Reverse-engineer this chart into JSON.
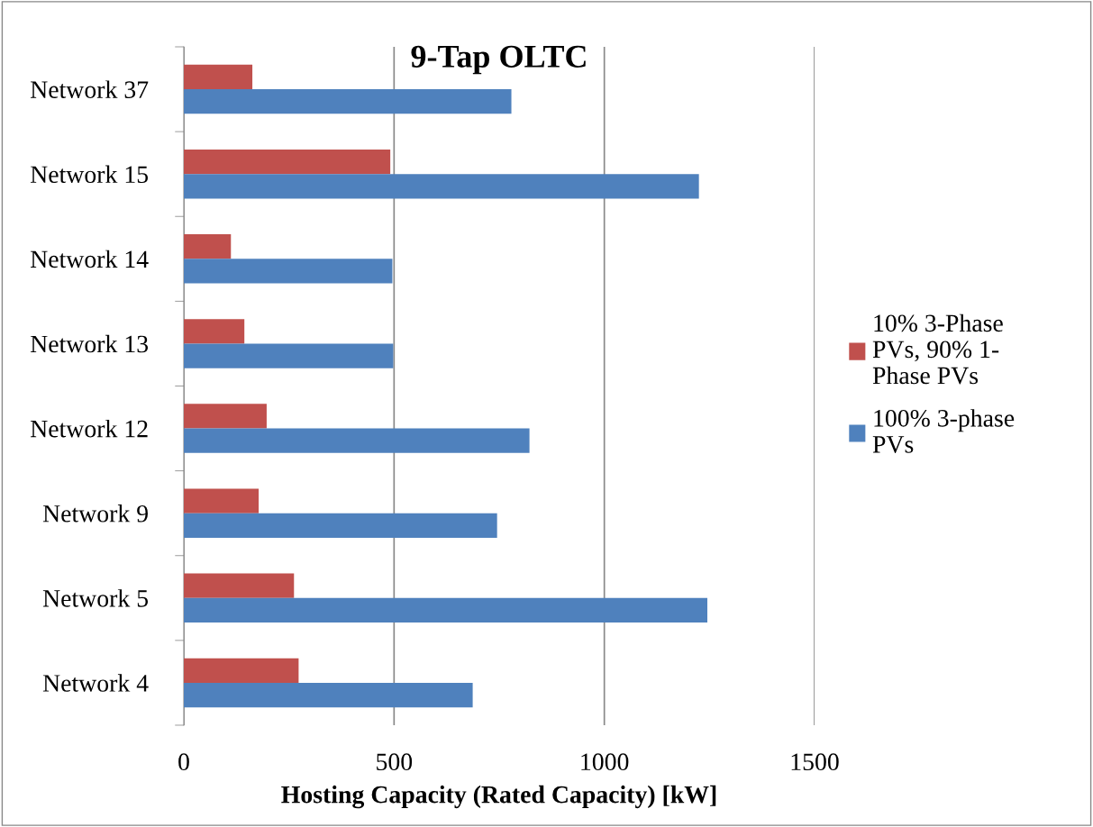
{
  "chart_data": {
    "type": "bar",
    "orientation": "horizontal",
    "title": "9-Tap OLTC",
    "xlabel": "Hosting Capacity (Rated Capacity) [kW]",
    "categories": [
      "Network 37",
      "Network 15",
      "Network 14",
      "Network 13",
      "Network 12",
      "Network 9",
      "Network 5",
      "Network 4"
    ],
    "series": [
      {
        "name": "10% 3-Phase\nPVs, 90% 1-\nPhase PVs",
        "color": "#c0504d",
        "values": [
          163,
          491,
          112,
          144,
          197,
          178,
          262,
          273
        ]
      },
      {
        "name": "100% 3-phase\nPVs",
        "color": "#4f81bd",
        "values": [
          779,
          1225,
          496,
          498,
          822,
          745,
          1245,
          687
        ]
      }
    ],
    "xlim": [
      0,
      1500
    ],
    "xticks": [
      0,
      500,
      1000,
      1500
    ],
    "grid": "x",
    "legend": "right"
  }
}
